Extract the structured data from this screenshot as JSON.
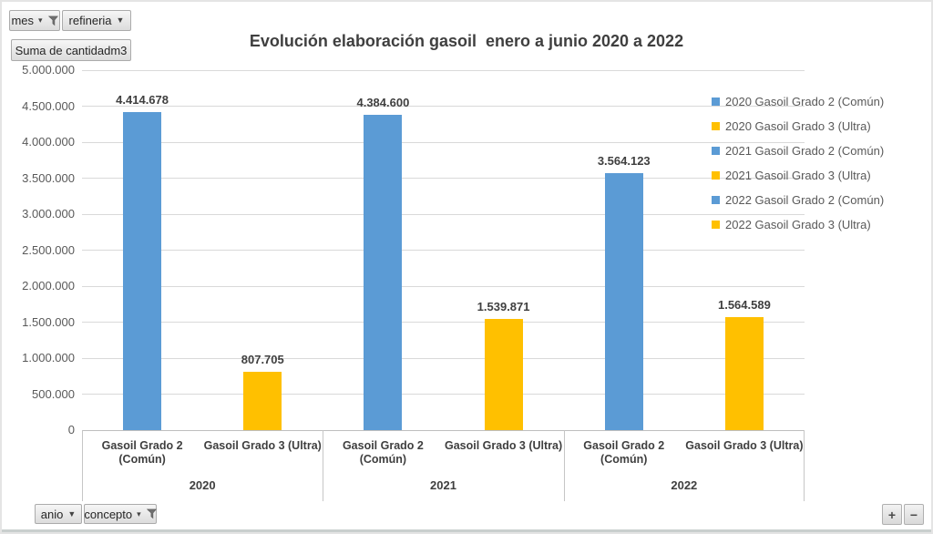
{
  "pivot_buttons": {
    "axis_top": [
      {
        "label": "mes",
        "icon": "filter-funnel-icon"
      },
      {
        "label": "refineria",
        "icon": "dropdown-arrow-icon"
      }
    ],
    "value_button": {
      "label": "Suma de cantidadm3"
    },
    "axis_bottom": [
      {
        "label": "anio",
        "icon": "dropdown-arrow-icon"
      },
      {
        "label": "concepto",
        "icon": "filter-funnel-icon"
      }
    ],
    "zoom_in_label": "+",
    "zoom_out_label": "−"
  },
  "chart_data": {
    "type": "bar",
    "title": "Evolución elaboración gasoil  enero a junio 2020 a 2022",
    "ylim": [
      0,
      5000000
    ],
    "ytick_step": 500000,
    "ytick_labels": [
      "0",
      "500.000",
      "1.000.000",
      "1.500.000",
      "2.000.000",
      "2.500.000",
      "3.000.000",
      "3.500.000",
      "4.000.000",
      "4.500.000",
      "5.000.000"
    ],
    "grid": true,
    "legend_position": "right",
    "group_labels": [
      "2020",
      "2021",
      "2022"
    ],
    "categories": [
      {
        "name": "Gasoil Grado 2 (Común)",
        "lines": [
          "Gasoil Grado 2",
          "(Común)"
        ]
      },
      {
        "name": "Gasoil Grado 3 (Ultra)",
        "lines": [
          "Gasoil Grado 3 (Ultra)"
        ]
      }
    ],
    "series": [
      {
        "name": "2020 Gasoil Grado 2 (Común)",
        "group": "2020",
        "category": "Gasoil Grado 2 (Común)",
        "value": 4414678,
        "label": "4.414.678",
        "color": "#5B9BD5"
      },
      {
        "name": "2020 Gasoil Grado 3 (Ultra)",
        "group": "2020",
        "category": "Gasoil Grado 3 (Ultra)",
        "value": 807705,
        "label": "807.705",
        "color": "#FFC000"
      },
      {
        "name": "2021 Gasoil Grado 2 (Común)",
        "group": "2021",
        "category": "Gasoil Grado 2 (Común)",
        "value": 4384600,
        "label": "4.384.600",
        "color": "#5B9BD5"
      },
      {
        "name": "2021 Gasoil Grado 3 (Ultra)",
        "group": "2021",
        "category": "Gasoil Grado 3 (Ultra)",
        "value": 1539871,
        "label": "1.539.871",
        "color": "#FFC000"
      },
      {
        "name": "2022 Gasoil Grado 2 (Común)",
        "group": "2022",
        "category": "Gasoil Grado 2 (Común)",
        "value": 3564123,
        "label": "3.564.123",
        "color": "#5B9BD5"
      },
      {
        "name": "2022 Gasoil Grado 3 (Ultra)",
        "group": "2022",
        "category": "Gasoil Grado 3 (Ultra)",
        "value": 1564589,
        "label": "1.564.589",
        "color": "#FFC000"
      }
    ],
    "legend": [
      {
        "label": "2020 Gasoil Grado 2 (Común)",
        "color": "#5B9BD5"
      },
      {
        "label": "2020 Gasoil Grado 3 (Ultra)",
        "color": "#FFC000"
      },
      {
        "label": "2021 Gasoil Grado 2 (Común)",
        "color": "#5B9BD5"
      },
      {
        "label": "2021 Gasoil Grado 3 (Ultra)",
        "color": "#FFC000"
      },
      {
        "label": "2022 Gasoil Grado 2 (Común)",
        "color": "#5B9BD5"
      },
      {
        "label": "2022 Gasoil Grado 3 (Ultra)",
        "color": "#FFC000"
      }
    ],
    "colors": {
      "series_blue": "#5B9BD5",
      "series_yellow": "#FFC000",
      "gridline": "#D9D9D9",
      "label_dark": "#3F3F3F",
      "label_gray": "#595959"
    }
  }
}
